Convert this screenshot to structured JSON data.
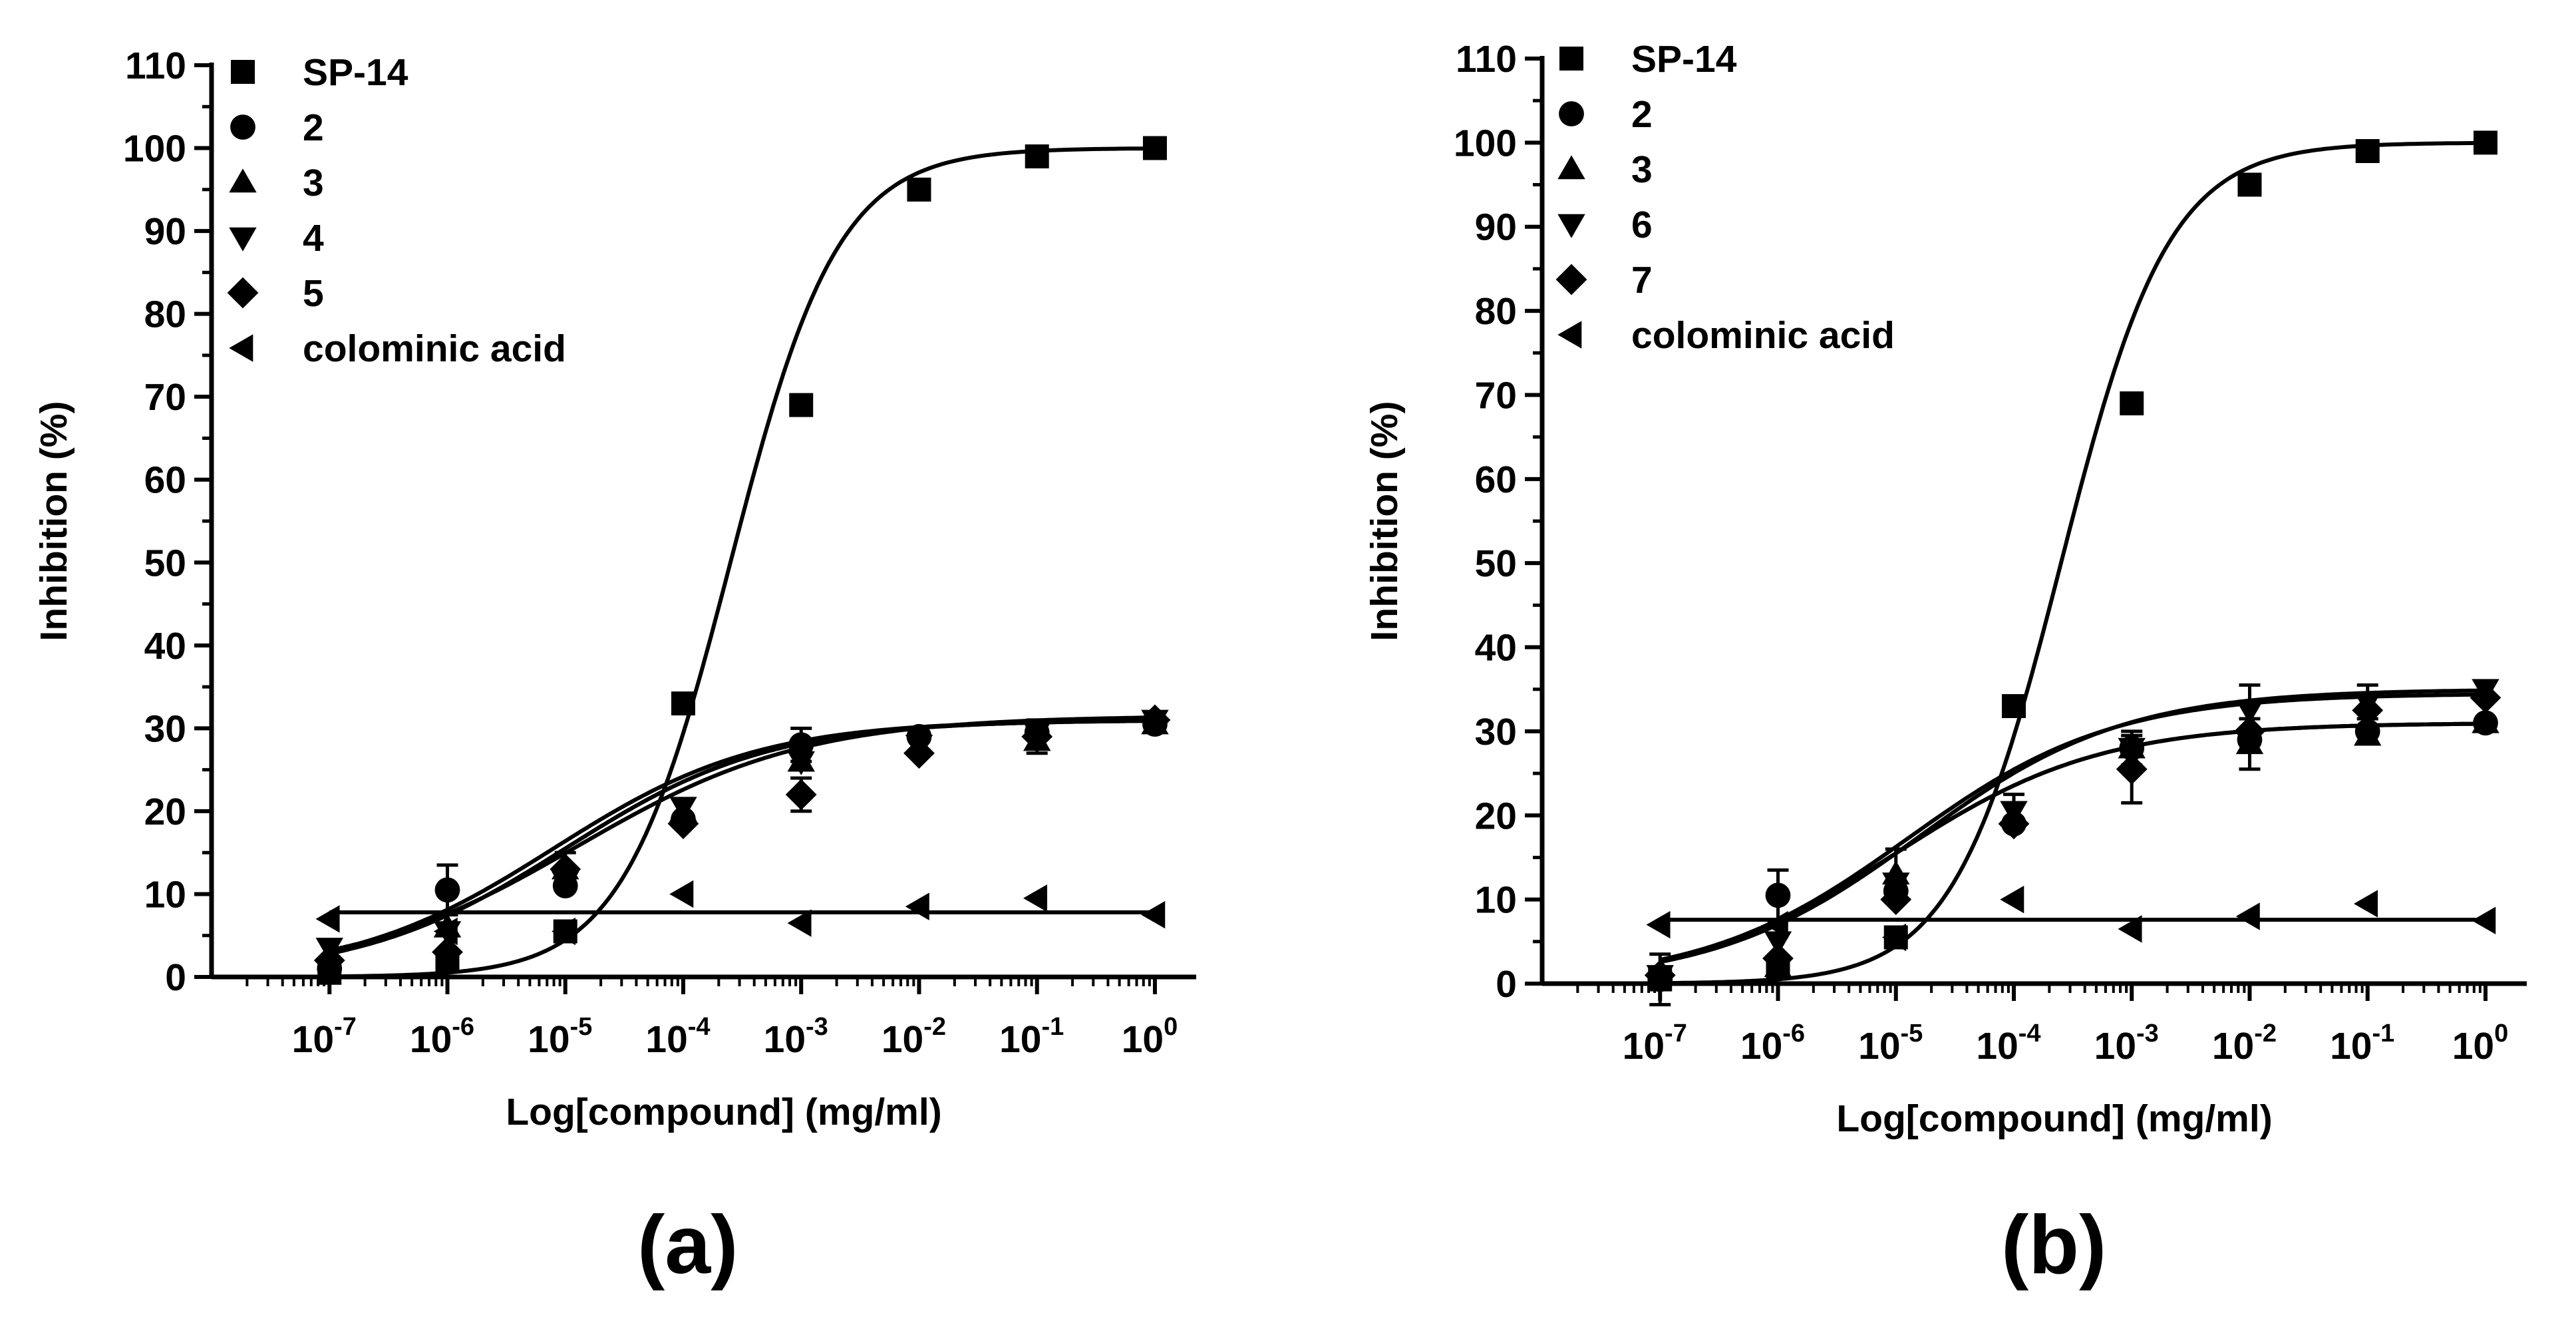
{
  "chart_data": [
    {
      "type": "line",
      "panel_label": "(a)",
      "xlabel": "Log[compound] (mg/ml)",
      "ylabel": "Inhibition (%)",
      "ylim": [
        0,
        110
      ],
      "yticks": [
        0,
        10,
        20,
        30,
        40,
        50,
        60,
        70,
        80,
        90,
        100,
        110
      ],
      "x_exponents": [
        -7,
        -6,
        -5,
        -4,
        -3,
        -2,
        -1,
        0
      ],
      "x_tick_base": "10",
      "x_tick_labels": [
        "-7",
        "-6",
        "-5",
        "-4",
        "-3",
        "-2",
        "-1",
        "0"
      ],
      "legend_position": "top-left",
      "series": [
        {
          "name": "SP-14",
          "marker": "square",
          "values": [
            0.5,
            2,
            5.5,
            33,
            69,
            95,
            99,
            100
          ],
          "fit": {
            "bottom": 0,
            "top": 100,
            "logec50": -3.6,
            "hill": 0.95
          }
        },
        {
          "name": "2",
          "marker": "circle",
          "values": [
            1,
            10.5,
            11,
            19,
            28,
            29,
            29.5,
            30.5
          ],
          "error": [
            0,
            3,
            0,
            0,
            2,
            0,
            0,
            0
          ],
          "fit": {
            "bottom": 0,
            "top": 31,
            "logec50": -5,
            "hill": 0.5
          }
        },
        {
          "name": "3",
          "marker": "triangle-up",
          "values": [
            1,
            6,
            13,
            20,
            26,
            28,
            28.5,
            30.5
          ],
          "fit": {
            "bottom": 0,
            "top": 31,
            "logec50": -5,
            "hill": 0.5
          }
        },
        {
          "name": "4",
          "marker": "triangle-down",
          "values": [
            3.5,
            5.5,
            11.5,
            20.5,
            26,
            28,
            29.5,
            31
          ],
          "fit": {
            "bottom": 0,
            "top": 31,
            "logec50": -5.1,
            "hill": 0.5
          }
        },
        {
          "name": "5",
          "marker": "diamond",
          "values": [
            2,
            3,
            13,
            18.5,
            22,
            27,
            29,
            31
          ],
          "error": [
            0,
            0,
            2,
            0,
            2,
            0,
            2,
            0
          ],
          "fit": {
            "bottom": 0,
            "top": 31.5,
            "logec50": -4.9,
            "hill": 0.45
          }
        },
        {
          "name": "colominic acid",
          "marker": "triangle-left",
          "values": [
            7,
            5.5,
            5.5,
            10,
            6.5,
            8.5,
            9.5,
            7.5
          ],
          "fit": {
            "flat": 7.8
          }
        }
      ]
    },
    {
      "type": "line",
      "panel_label": "(b)",
      "xlabel": "Log[compound] (mg/ml)",
      "ylabel": "Inhibition (%)",
      "ylim": [
        0,
        110
      ],
      "yticks": [
        0,
        10,
        20,
        30,
        40,
        50,
        60,
        70,
        80,
        90,
        100,
        110
      ],
      "x_exponents": [
        -7,
        -6,
        -5,
        -4,
        -3,
        -2,
        -1,
        0
      ],
      "x_tick_base": "10",
      "x_tick_labels": [
        "-7",
        "-6",
        "-5",
        "-4",
        "-3",
        "-2",
        "-1",
        "0"
      ],
      "legend_position": "top-left",
      "series": [
        {
          "name": "SP-14",
          "marker": "square",
          "values": [
            0.5,
            2,
            5.5,
            33,
            69,
            95,
            99,
            100
          ],
          "fit": {
            "bottom": 0,
            "top": 100,
            "logec50": -3.6,
            "hill": 0.95
          }
        },
        {
          "name": "2",
          "marker": "circle",
          "values": [
            0.5,
            10.5,
            11,
            19,
            28,
            29,
            30,
            31
          ],
          "error": [
            3,
            3,
            0,
            0,
            2,
            0,
            0,
            0
          ],
          "fit": {
            "bottom": 0,
            "top": 31,
            "logec50": -5,
            "hill": 0.5
          }
        },
        {
          "name": "3",
          "marker": "triangle-up",
          "values": [
            1,
            2,
            13,
            20,
            28,
            28.5,
            29.5,
            31
          ],
          "error": [
            0,
            0,
            3,
            0,
            0,
            3,
            0,
            0
          ],
          "fit": {
            "bottom": 0,
            "top": 31,
            "logec50": -5,
            "hill": 0.5
          }
        },
        {
          "name": "6",
          "marker": "triangle-down",
          "values": [
            1,
            5,
            12,
            20.5,
            28,
            32.5,
            33.5,
            35
          ],
          "error": [
            0,
            0,
            0,
            2,
            0,
            3,
            2,
            0
          ],
          "fit": {
            "bottom": 0,
            "top": 35,
            "logec50": -4.8,
            "hill": 0.5
          }
        },
        {
          "name": "7",
          "marker": "diamond",
          "values": [
            1,
            3,
            10,
            19,
            25.5,
            30,
            32.5,
            34
          ],
          "error": [
            0,
            0,
            0,
            0,
            4,
            0,
            2,
            0
          ],
          "fit": {
            "bottom": 0,
            "top": 34.5,
            "logec50": -4.9,
            "hill": 0.5
          }
        },
        {
          "name": "colominic acid",
          "marker": "triangle-left",
          "values": [
            7,
            7,
            5.5,
            10,
            6.5,
            8,
            9.5,
            7.5
          ],
          "fit": {
            "flat": 7.6
          }
        }
      ]
    }
  ]
}
